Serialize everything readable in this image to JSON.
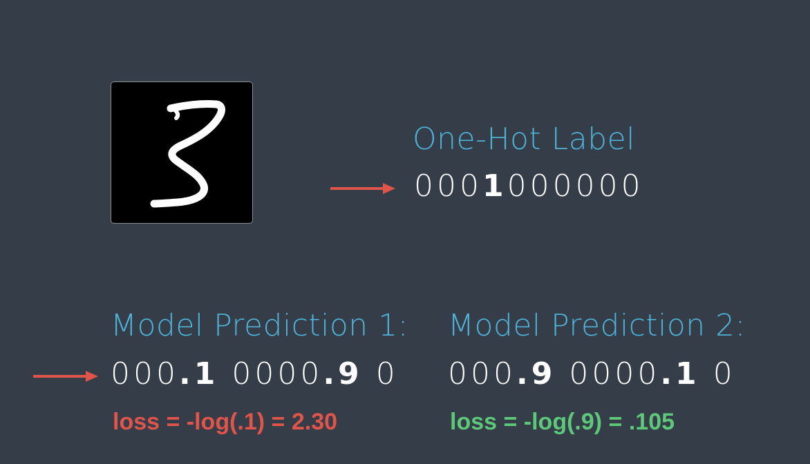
{
  "colors": {
    "background": "#343d48",
    "heading": "#4fb3d9",
    "sequence": "#ffffff",
    "arrow": "#e0544a",
    "loss_bad": "#e0544a",
    "loss_good": "#5ec87a"
  },
  "digit_image": {
    "icon": "handwritten-digit-3-image"
  },
  "label": {
    "title": "One-Hot Label",
    "seq": [
      {
        "text": "0",
        "bold": false
      },
      {
        "text": "0",
        "bold": false
      },
      {
        "text": "0",
        "bold": false
      },
      {
        "text": "1",
        "bold": true
      },
      {
        "text": "0",
        "bold": false
      },
      {
        "text": "0",
        "bold": false
      },
      {
        "text": "0",
        "bold": false
      },
      {
        "text": "0",
        "bold": false
      },
      {
        "text": "0",
        "bold": false
      },
      {
        "text": "0",
        "bold": false
      }
    ]
  },
  "prediction1": {
    "title": "Model Prediction 1:",
    "seq": [
      {
        "text": "0",
        "bold": false
      },
      {
        "text": "0",
        "bold": false
      },
      {
        "text": "0",
        "bold": false
      },
      {
        "text": ".1",
        "bold": true
      },
      {
        "text": " ",
        "bold": false
      },
      {
        "text": "0",
        "bold": false
      },
      {
        "text": "0",
        "bold": false
      },
      {
        "text": "0",
        "bold": false
      },
      {
        "text": "0",
        "bold": false
      },
      {
        "text": ".9",
        "bold": true
      },
      {
        "text": " ",
        "bold": false
      },
      {
        "text": "0",
        "bold": false
      }
    ],
    "loss": "loss = -log(.1) = 2.30"
  },
  "prediction2": {
    "title": "Model Prediction 2:",
    "seq": [
      {
        "text": "0",
        "bold": false
      },
      {
        "text": "0",
        "bold": false
      },
      {
        "text": "0",
        "bold": false
      },
      {
        "text": ".9",
        "bold": true
      },
      {
        "text": " ",
        "bold": false
      },
      {
        "text": "0",
        "bold": false
      },
      {
        "text": "0",
        "bold": false
      },
      {
        "text": "0",
        "bold": false
      },
      {
        "text": "0",
        "bold": false
      },
      {
        "text": ".1",
        "bold": true
      },
      {
        "text": " ",
        "bold": false
      },
      {
        "text": "0",
        "bold": false
      }
    ],
    "loss": "loss = -log(.9) = .105"
  }
}
